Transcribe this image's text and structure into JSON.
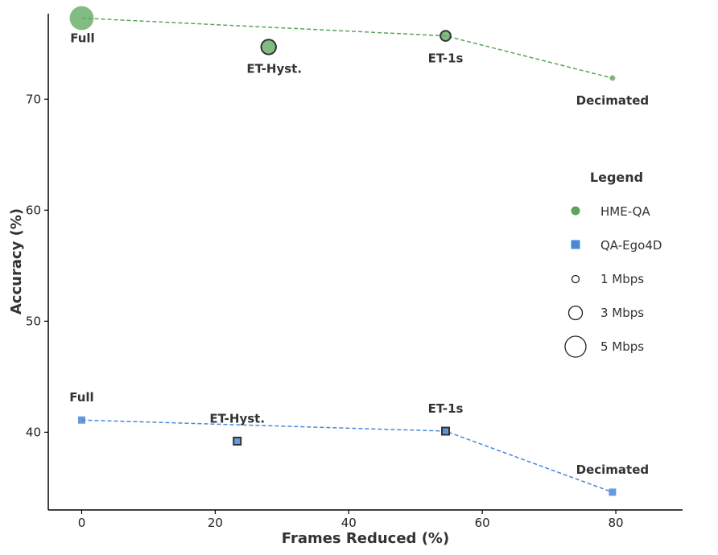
{
  "chart_data": {
    "type": "scatter",
    "xlabel": "Frames Reduced (%)",
    "ylabel": "Accuracy (%)",
    "xlim": [
      -5,
      90
    ],
    "ylim": [
      33,
      77.7
    ],
    "x_ticks": [
      "0",
      "20",
      "40",
      "60",
      "80"
    ],
    "y_ticks": [
      "40",
      "50",
      "60",
      "70"
    ],
    "grid": false,
    "legend_position": "right",
    "legend_title": "Legend",
    "series": [
      {
        "name": "HME-QA",
        "color": "#5aa55a",
        "marker": "circle",
        "line": "dashed",
        "points": [
          {
            "label": "Full",
            "x": 0,
            "y": 77.3,
            "bitrate_mbps": 5
          },
          {
            "label": "ET-Hyst.",
            "x": 28,
            "y": 74.7,
            "bitrate_mbps": 3
          },
          {
            "label": "ET-1s",
            "x": 54.5,
            "y": 75.7,
            "bitrate_mbps": 2
          },
          {
            "label": "Decimated",
            "x": 79.5,
            "y": 71.9,
            "bitrate_mbps": 1
          }
        ],
        "line_points": [
          [
            0,
            77.3
          ],
          [
            54.5,
            75.7
          ],
          [
            79.5,
            71.9
          ]
        ]
      },
      {
        "name": "QA-Ego4D",
        "color": "#4a88d6",
        "marker": "square",
        "line": "dashed",
        "points": [
          {
            "label": "Full",
            "x": 0,
            "y": 41.1
          },
          {
            "label": "ET-Hyst.",
            "x": 23.3,
            "y": 39.2
          },
          {
            "label": "ET-1s",
            "x": 54.5,
            "y": 40.1
          },
          {
            "label": "Decimated",
            "x": 79.5,
            "y": 34.6
          }
        ],
        "line_points": [
          [
            0,
            41.1
          ],
          [
            54.5,
            40.1
          ],
          [
            79.5,
            34.6
          ]
        ]
      }
    ],
    "size_legend": [
      "1 Mbps",
      "3 Mbps",
      "5 Mbps"
    ]
  }
}
